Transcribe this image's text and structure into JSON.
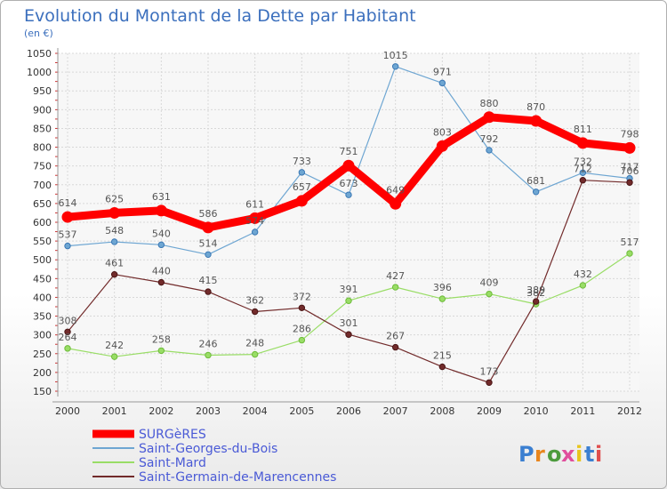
{
  "chart_data": {
    "type": "line",
    "title": "Evolution du Montant de la Dette par Habitant",
    "subtitle": "(en €)",
    "xlabel": "",
    "ylabel": "",
    "x": [
      "2000",
      "2001",
      "2002",
      "2003",
      "2004",
      "2005",
      "2006",
      "2007",
      "2008",
      "2009",
      "2010",
      "2011",
      "2012"
    ],
    "ylim": [
      150,
      1050
    ],
    "yticks": [
      150,
      200,
      250,
      300,
      350,
      400,
      450,
      500,
      550,
      600,
      650,
      700,
      750,
      800,
      850,
      900,
      950,
      1000,
      1050
    ],
    "ytick_labels": [
      "150",
      "200",
      "250",
      "300",
      "350",
      "400",
      "450",
      "500",
      "550",
      "600",
      "650",
      "700",
      "750",
      "800",
      "850",
      "900",
      "950",
      "1000",
      "1050"
    ],
    "grid": true,
    "legend": "bottom-left",
    "series": [
      {
        "name": "SURGèRES",
        "color": "#ff0000",
        "values": [
          614,
          625,
          631,
          586,
          611,
          657,
          751,
          649,
          803,
          880,
          870,
          811,
          798
        ]
      },
      {
        "name": "Saint-Georges-du-Bois",
        "color": "#6ea6d2",
        "values": [
          537,
          548,
          540,
          514,
          574,
          733,
          673,
          1015,
          971,
          792,
          681,
          732,
          717
        ]
      },
      {
        "name": "Saint-Mard",
        "color": "#99dd66",
        "values": [
          264,
          242,
          258,
          246,
          248,
          286,
          391,
          427,
          396,
          409,
          382,
          432,
          517
        ]
      },
      {
        "name": "Saint-Germain-de-Marencennes",
        "color": "#722b2b",
        "values": [
          308,
          461,
          440,
          415,
          362,
          372,
          301,
          267,
          215,
          173,
          389,
          712,
          706
        ]
      }
    ],
    "data_labels": [
      [
        "614",
        "625",
        "631",
        "586",
        "611",
        "657",
        "751",
        "649",
        "803",
        "880",
        "870",
        "811",
        "798"
      ],
      [
        "537",
        "548",
        "540",
        "514",
        "574",
        "733",
        "673",
        "1015",
        "971",
        "792",
        "681",
        "732",
        "717"
      ],
      [
        "264",
        "242",
        "258",
        "246",
        "248",
        "286",
        "391",
        "427",
        "396",
        "409",
        "382",
        "432",
        "517"
      ],
      [
        "308",
        "461",
        "440",
        "415",
        "362",
        "372",
        "301",
        "267",
        "215",
        "173",
        "389",
        "712",
        "706"
      ]
    ]
  },
  "logo": {
    "text": "Proxiti"
  }
}
